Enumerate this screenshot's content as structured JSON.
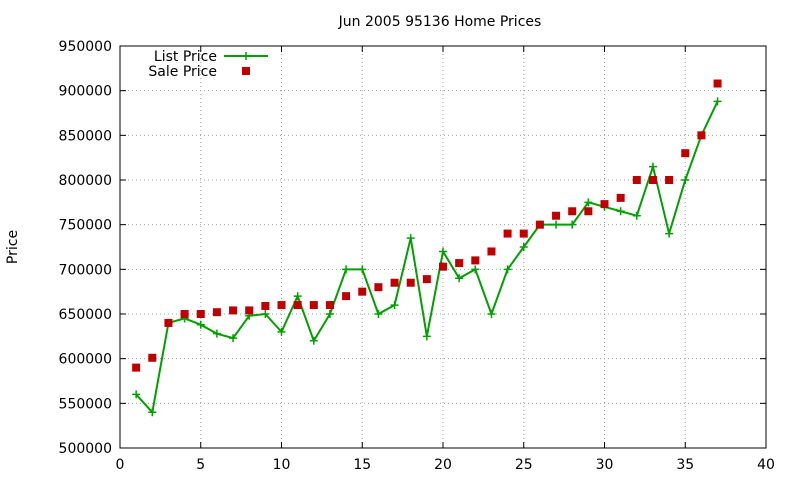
{
  "chart_data": {
    "type": "line",
    "title": "Jun 2005 95136 Home Prices",
    "xlabel": "",
    "ylabel": "Price",
    "xlim": [
      0,
      40
    ],
    "ylim": [
      500000,
      950000
    ],
    "x_ticks": [
      0,
      5,
      10,
      15,
      20,
      25,
      30,
      35,
      40
    ],
    "y_ticks": [
      500000,
      550000,
      600000,
      650000,
      700000,
      750000,
      800000,
      850000,
      900000,
      950000
    ],
    "grid": true,
    "legend_position": "top-left",
    "series": [
      {
        "name": "List Price",
        "style": "linespoints",
        "color": "#00a000",
        "marker": "plus",
        "x": [
          1,
          2,
          3,
          4,
          5,
          6,
          7,
          8,
          9,
          10,
          11,
          12,
          13,
          14,
          15,
          16,
          17,
          18,
          19,
          20,
          21,
          22,
          23,
          24,
          25,
          26,
          27,
          28,
          29,
          30,
          31,
          32,
          33,
          34,
          35,
          36,
          37
        ],
        "values": [
          560000,
          540000,
          640000,
          645000,
          638000,
          628000,
          623000,
          648000,
          650000,
          630000,
          670000,
          620000,
          650000,
          700000,
          700000,
          650000,
          660000,
          735000,
          625000,
          720000,
          690000,
          700000,
          650000,
          700000,
          725000,
          750000,
          750000,
          750000,
          775000,
          770000,
          765000,
          760000,
          815000,
          740000,
          800000,
          850000,
          888000
        ]
      },
      {
        "name": "Sale Price",
        "style": "points",
        "color": "#c00000",
        "marker": "square",
        "x": [
          1,
          2,
          3,
          4,
          5,
          6,
          7,
          8,
          9,
          10,
          11,
          12,
          13,
          14,
          15,
          16,
          17,
          18,
          19,
          20,
          21,
          22,
          23,
          24,
          25,
          26,
          27,
          28,
          29,
          30,
          31,
          32,
          33,
          34,
          35,
          36,
          37
        ],
        "values": [
          590000,
          601000,
          640000,
          650000,
          650000,
          652000,
          654000,
          654000,
          659000,
          660000,
          660000,
          660000,
          660000,
          670000,
          675000,
          680000,
          685000,
          685000,
          689000,
          703000,
          707000,
          710000,
          720000,
          740000,
          740000,
          750000,
          760000,
          765000,
          765000,
          773000,
          780000,
          800000,
          800000,
          800000,
          830000,
          850000,
          908000
        ]
      }
    ]
  }
}
